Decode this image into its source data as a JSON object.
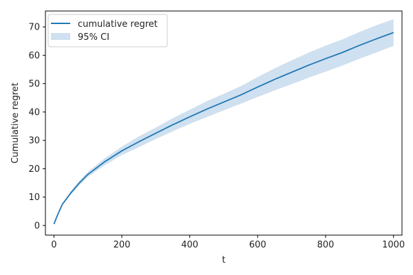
{
  "chart_data": {
    "type": "line",
    "title": "",
    "xlabel": "t",
    "ylabel": "Cumulative regret",
    "xlim": [
      -25,
      1025
    ],
    "ylim": [
      -3.4,
      75.6
    ],
    "xticks": [
      0,
      200,
      400,
      600,
      800,
      1000
    ],
    "yticks": [
      0,
      10,
      20,
      30,
      40,
      50,
      60,
      70
    ],
    "grid": false,
    "legend_position": "top-left",
    "colors": {
      "line": "#1f77b4",
      "band": "#cfe0f0"
    },
    "series": [
      {
        "name": "cumulative regret",
        "x": [
          0,
          10,
          25,
          50,
          75,
          100,
          150,
          200,
          250,
          300,
          350,
          400,
          450,
          500,
          550,
          600,
          650,
          700,
          750,
          800,
          850,
          900,
          950,
          1000
        ],
        "y": [
          0.5,
          3.5,
          7.5,
          11.5,
          15,
          18,
          22.5,
          26.3,
          29.5,
          32.5,
          35.5,
          38.3,
          41,
          43.5,
          46,
          48.8,
          51.5,
          54,
          56.5,
          58.8,
          61,
          63.5,
          65.8,
          68
        ]
      }
    ],
    "band": {
      "name": "95% CI",
      "x": [
        0,
        10,
        25,
        50,
        75,
        100,
        150,
        200,
        250,
        300,
        350,
        400,
        450,
        500,
        550,
        600,
        650,
        700,
        750,
        800,
        850,
        900,
        950,
        1000
      ],
      "lower": [
        0.5,
        3.2,
        7.1,
        10.9,
        14.2,
        17.1,
        21.3,
        24.8,
        27.6,
        30.5,
        33.2,
        35.8,
        38.2,
        40.6,
        42.9,
        45.3,
        47.6,
        49.8,
        52.1,
        54.2,
        56.4,
        58.8,
        61,
        63.3
      ],
      "upper": [
        0.5,
        3.8,
        7.9,
        12.1,
        15.8,
        18.9,
        23.7,
        27.8,
        31.4,
        34.5,
        37.8,
        40.8,
        43.8,
        46.4,
        49.1,
        52.3,
        55.4,
        58.2,
        60.9,
        63.4,
        65.6,
        68.2,
        70.6,
        72.7
      ]
    }
  }
}
